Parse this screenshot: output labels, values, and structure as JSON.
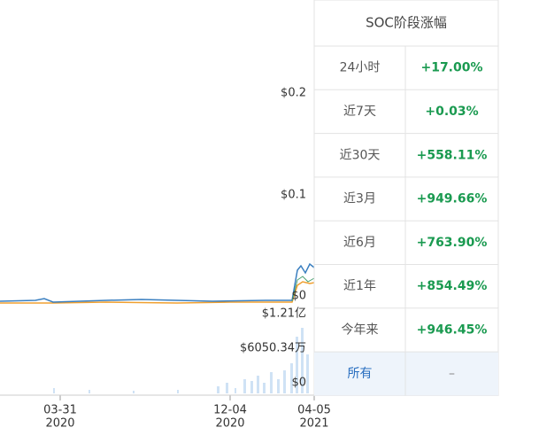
{
  "chart": {
    "price_axis": [
      "$0.2",
      "$0.1",
      "$0"
    ],
    "volume_axis": [
      "$1.21亿",
      "$6050.34万",
      "$0"
    ],
    "dates": [
      {
        "day": "03-31",
        "year": "2020"
      },
      {
        "day": "12-04",
        "year": "2020"
      },
      {
        "day": "04-05",
        "year": "2021"
      }
    ]
  },
  "panel": {
    "title": "SOC阶段涨幅",
    "rows": [
      [
        "24小时",
        "+17.00%"
      ],
      [
        "近7天",
        "+0.03%"
      ],
      [
        "近30天",
        "+558.11%"
      ],
      [
        "近3月",
        "+949.66%"
      ],
      [
        "近6月",
        "+763.90%"
      ],
      [
        "近1年",
        "+854.49%"
      ],
      [
        "今年来",
        "+946.45%"
      ],
      [
        "所有",
        "–"
      ]
    ]
  }
}
